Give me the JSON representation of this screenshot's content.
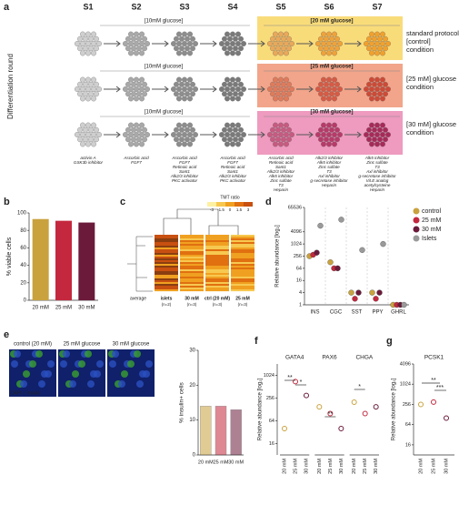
{
  "a": {
    "letter": "a",
    "stages": [
      "S1",
      "S2",
      "S3",
      "S4",
      "S5",
      "S6",
      "S7"
    ],
    "side_label": "Differentiation round",
    "rows": [
      {
        "early": "[10mM glucose]",
        "late": "[20 mM glucose]",
        "condition": [
          "standard protocol",
          "[control]",
          "condition"
        ]
      },
      {
        "early": "[10mM glucose]",
        "late": "[25 mM glucose]",
        "condition": [
          "[25 mM] glucose",
          "condition"
        ]
      },
      {
        "early": "[10mM glucose]",
        "late": "[30 mM glucose]",
        "condition": [
          "[30 mM] glucose",
          "condition"
        ]
      }
    ],
    "factors": [
      [
        "activin A",
        "GSK3b inhibitor"
      ],
      [
        "Ascorbic acid",
        "FGF7"
      ],
      [
        "Ascorbic acid",
        "FGF7",
        "Retinoic acid",
        "Sant1",
        "Alk2/3 inhibitor",
        "PKC activator"
      ],
      [
        "Ascorbic acid",
        "FGF7",
        "Retinoic acid",
        "Sant1",
        "Alk2/3 inhibitor",
        "PKC activator"
      ],
      [
        "Ascorbic acid",
        "Retinoic acid",
        "Sant1",
        "Alk2/3 inhibitor",
        "Alk5 inhibitor",
        "Zinc sulfate",
        "T3",
        "Heparin"
      ],
      [
        "Alk2/3 inhibitor",
        "Alk5 inhibitor",
        "Zinc sulfate",
        "T3",
        "Axl inhibitor",
        "g-secretase inhibitor",
        "Heparin"
      ],
      [
        "Alk5 inhibitor",
        "Zinc sulfate",
        "T3",
        "Axl inhibitor",
        "g-secretase inhibitor",
        "Vit.E analog",
        "acetylcysteine",
        "Heparin"
      ]
    ]
  },
  "b": {
    "letter": "b",
    "type": "bar",
    "categories": [
      "20 mM",
      "25 mM",
      "30 mM"
    ],
    "values": [
      93,
      91,
      89
    ],
    "colors": [
      "#c9a23e",
      "#c4283e",
      "#6b1a3a"
    ],
    "ylim": [
      0,
      100
    ],
    "yticks": [
      0,
      20,
      40,
      60,
      80,
      100
    ],
    "ylabel": "% viable cells"
  },
  "c": {
    "letter": "c",
    "legend_title": "TMT ratio",
    "legend_ticks": [
      -3,
      -1.5,
      0,
      1.5,
      3
    ],
    "row_label": "average",
    "columns": [
      {
        "name": "islets",
        "n": "(n=2)"
      },
      {
        "name": "30 mM",
        "n": "(n=3)"
      },
      {
        "name": "ctrl (20 mM)",
        "n": "(n=3)"
      },
      {
        "name": "25 mM",
        "n": "(n=3)"
      }
    ]
  },
  "d": {
    "letter": "d",
    "type": "dot",
    "log_base": 2,
    "categories": [
      "INS",
      "CGC",
      "SST",
      "PPY",
      "GHRL"
    ],
    "series": [
      {
        "name": "control",
        "color": "#c9a23e",
        "values": [
          256,
          128,
          4,
          4,
          1
        ]
      },
      {
        "name": "25 mM",
        "color": "#c4283e",
        "values": [
          300,
          64,
          2,
          2,
          1
        ]
      },
      {
        "name": "30 mM",
        "color": "#6b1a3a",
        "values": [
          380,
          64,
          4,
          4,
          1
        ]
      },
      {
        "name": "Islets",
        "color": "#9a9a9a",
        "values": [
          8192,
          16384,
          512,
          1024,
          1
        ]
      }
    ],
    "ylim": [
      1,
      65536
    ],
    "yticks": [
      1,
      4,
      16,
      64,
      256,
      1024,
      4096,
      65536
    ],
    "ylabel": "Relative abundance [log₂]"
  },
  "e": {
    "letter": "e",
    "images": [
      "control (20 mM)",
      "25 mM glucose",
      "30 mM glucose"
    ],
    "stain_dapi": "DAPI",
    "stain_sep": "/",
    "stain_ins": "insulin",
    "type": "bar",
    "categories": [
      "20 mM",
      "25 mM",
      "30 mM"
    ],
    "values": [
      14,
      14,
      13
    ],
    "ylim": [
      0,
      30
    ],
    "yticks": [
      0,
      10,
      20,
      30
    ],
    "ylabel": "% insulin+ cells"
  },
  "f": {
    "letter": "f",
    "log_base": 2,
    "groups": [
      "GATA4",
      "PAX6",
      "CHGA"
    ],
    "categories": [
      "20 mM",
      "25 mM",
      "30 mM"
    ],
    "values": [
      [
        40,
        700,
        300
      ],
      [
        150,
        100,
        40
      ],
      [
        200,
        100,
        150
      ]
    ],
    "ylim": [
      8,
      2048
    ],
    "yticks": [
      16,
      64,
      256,
      1024
    ],
    "ylabel": "Relative abundance [log₂]",
    "annotations": [
      "**",
      "*",
      "**",
      "*"
    ]
  },
  "g": {
    "letter": "g",
    "log_base": 2,
    "title": "PCSK1",
    "categories": [
      "20 mM",
      "25 mM",
      "30 mM"
    ],
    "values": [
      256,
      300,
      100
    ],
    "ylim": [
      8,
      4096
    ],
    "yticks": [
      16,
      64,
      256,
      1024,
      4096
    ],
    "ylabel": "Relative abundance [log₂]",
    "annotations": [
      "**",
      "***"
    ]
  }
}
